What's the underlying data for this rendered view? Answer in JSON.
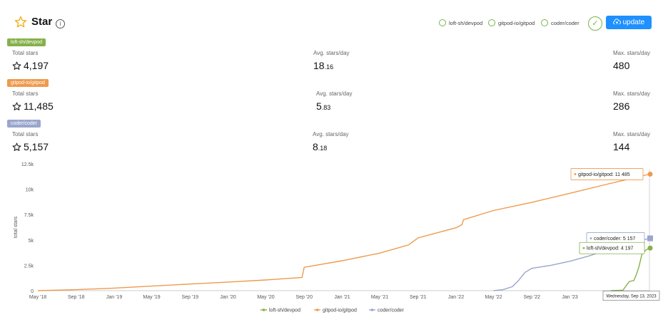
{
  "header": {
    "title": "Star",
    "info_icon": "info-icon",
    "toggles": [
      {
        "label": "loft-sh/devpod"
      },
      {
        "label": "gitpod-io/gitpod"
      },
      {
        "label": "coder/coder"
      }
    ],
    "update_label": "update",
    "check_icon": "check-icon",
    "cloud_icon": "cloud-upload-icon"
  },
  "colors": {
    "devpod": "#86b04a",
    "gitpod": "#ee9a4d",
    "coder": "#9aa6cc",
    "accent": "#1e90ff"
  },
  "repos": [
    {
      "badge": "loft-sh/devpod",
      "total_label": "Total stars",
      "total_value": "4,197",
      "avg_label": "Avg. stars/day",
      "avg_int": "18",
      "avg_dec": ".16",
      "max_label": "Max. stars/day",
      "max_value": "480"
    },
    {
      "badge": "gitpod-io/gitpod",
      "total_label": "Total stars",
      "total_value": "11,485",
      "avg_label": "Avg. stars/day",
      "avg_int": "5",
      "avg_dec": ".83",
      "max_label": "Max. stars/day",
      "max_value": "286"
    },
    {
      "badge": "coder/coder",
      "total_label": "Total stars",
      "total_value": "5,157",
      "avg_label": "Avg. stars/day",
      "avg_int": "8",
      "avg_dec": ".18",
      "max_label": "Max. stars/day",
      "max_value": "144"
    }
  ],
  "chart_data": {
    "type": "line",
    "title": "",
    "xlabel": "",
    "ylabel": "total stars",
    "ylim": [
      0,
      12500
    ],
    "y_ticks": [
      "0",
      "2.5k",
      "5k",
      "7.5k",
      "10k",
      "12.5k"
    ],
    "x_ticks": [
      "May '18",
      "Sep '18",
      "Jan '19",
      "May '19",
      "Sep '19",
      "Jan '20",
      "May '20",
      "Sep '20",
      "Jan '21",
      "May '21",
      "Sep '21",
      "Jan '22",
      "May '22",
      "Sep '22",
      "Jan '23",
      "M"
    ],
    "grid": false,
    "legend_position": "bottom",
    "series": [
      {
        "name": "loft-sh/devpod",
        "x": [
          "2023-05-12",
          "2023-06-20",
          "2023-07-10",
          "2023-07-25",
          "2023-08-01",
          "2023-08-10",
          "2023-08-20",
          "2023-09-01",
          "2023-09-13"
        ],
        "y": [
          0,
          50,
          900,
          1000,
          1500,
          2300,
          3600,
          4000,
          4197
        ]
      },
      {
        "name": "gitpod-io/gitpod",
        "x": [
          "2018-05-01",
          "2018-09-01",
          "2019-01-01",
          "2019-05-01",
          "2019-09-01",
          "2020-01-01",
          "2020-05-01",
          "2020-08-25",
          "2020-09-01",
          "2021-01-01",
          "2021-05-01",
          "2021-08-01",
          "2021-09-01",
          "2022-01-01",
          "2022-01-20",
          "2022-01-25",
          "2022-05-01",
          "2022-09-01",
          "2023-01-01",
          "2023-05-01",
          "2023-09-13"
        ],
        "y": [
          0,
          100,
          250,
          450,
          650,
          850,
          1050,
          1300,
          2300,
          2950,
          3700,
          4500,
          5200,
          6200,
          6500,
          7000,
          7900,
          8700,
          9600,
          10500,
          11485
        ]
      },
      {
        "name": "coder/coder",
        "x": [
          "2022-05-01",
          "2022-06-01",
          "2022-07-01",
          "2022-07-20",
          "2022-08-10",
          "2022-09-01",
          "2022-11-01",
          "2023-01-01",
          "2023-03-01",
          "2023-05-01",
          "2023-07-01",
          "2023-09-13"
        ],
        "y": [
          0,
          100,
          400,
          1000,
          1800,
          2200,
          2500,
          2900,
          3400,
          4000,
          4600,
          5157
        ]
      }
    ],
    "tooltip_labels": [
      {
        "series": "gitpod-io/gitpod",
        "text": "gitpod-io/gitpod: 11 485"
      },
      {
        "series": "coder/coder",
        "text": "coder/coder: 5 157"
      },
      {
        "series": "loft-sh/devpod",
        "text": "loft-sh/devpod: 4 197"
      }
    ],
    "hover_date": "Wednesday, Sep 13, 2023"
  }
}
